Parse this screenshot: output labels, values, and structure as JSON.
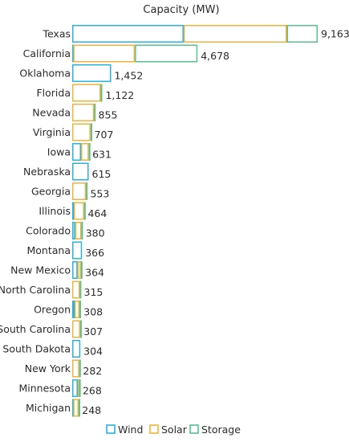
{
  "chart_data": {
    "type": "bar",
    "orientation": "horizontal",
    "stacked": true,
    "title": "Capacity (MW)",
    "categories": [
      "Texas",
      "California",
      "Oklahoma",
      "Florida",
      "Nevada",
      "Virginia",
      "Iowa",
      "Nebraska",
      "Georgia",
      "Illinois",
      "Colorado",
      "Montana",
      "New Mexico",
      "North Carolina",
      "Oregon",
      "South Carolina",
      "South Dakota",
      "New York",
      "Minnesota",
      "Michigan"
    ],
    "totals_labels": [
      "9,163",
      "4,678",
      "1,452",
      "1,122",
      "855",
      "707",
      "631",
      "615",
      "553",
      "464",
      "380",
      "366",
      "364",
      "315",
      "308",
      "307",
      "304",
      "282",
      "268",
      "248"
    ],
    "series": [
      {
        "name": "Wind",
        "color": "#29b3de",
        "values": [
          4160,
          40,
          1452,
          0,
          0,
          0,
          330,
          615,
          0,
          60,
          110,
          366,
          200,
          0,
          90,
          0,
          304,
          0,
          208,
          40
        ]
      },
      {
        "name": "Solar",
        "color": "#f0b43c",
        "values": [
          3850,
          2300,
          0,
          1062,
          815,
          687,
          290,
          0,
          513,
          384,
          230,
          0,
          124,
          280,
          178,
          297,
          0,
          262,
          50,
          198
        ]
      },
      {
        "name": "Storage",
        "color": "#58c18f",
        "values": [
          1153,
          2338,
          0,
          60,
          40,
          20,
          11,
          0,
          40,
          20,
          40,
          0,
          40,
          35,
          40,
          10,
          0,
          20,
          10,
          10
        ]
      }
    ],
    "xlim": [
      0,
      9163
    ],
    "legend_position": "bottom",
    "grid": false
  }
}
